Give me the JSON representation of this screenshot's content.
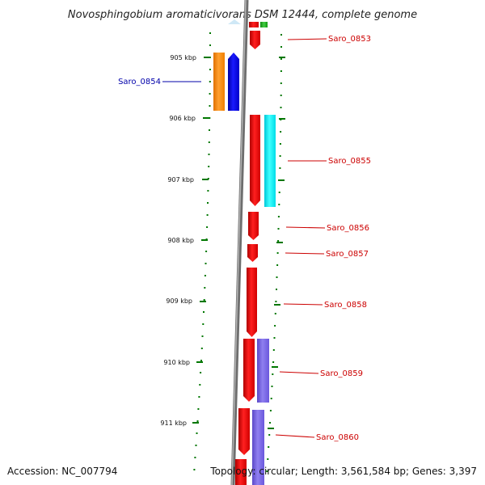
{
  "title": "Novosphingobium aromaticivorans DSM 12444, complete genome",
  "footer": {
    "accession": "Accession: NC_007794",
    "topology": "Topology: circular; Length: 3,561,584 bp; Genes: 3,397"
  },
  "ticks": [
    {
      "label": "905 kbp"
    },
    {
      "label": "906 kbp"
    },
    {
      "label": "907 kbp"
    },
    {
      "label": "908 kbp"
    },
    {
      "label": "909 kbp"
    },
    {
      "label": "910 kbp"
    },
    {
      "label": "911 kbp"
    }
  ],
  "gene_labels": [
    {
      "name": "Saro_0853",
      "strand": "forward"
    },
    {
      "name": "Saro_0854",
      "strand": "reverse"
    },
    {
      "name": "Saro_0855",
      "strand": "forward"
    },
    {
      "name": "Saro_0856",
      "strand": "forward"
    },
    {
      "name": "Saro_0857",
      "strand": "forward"
    },
    {
      "name": "Saro_0858",
      "strand": "forward"
    },
    {
      "name": "Saro_0859",
      "strand": "forward"
    },
    {
      "name": "Saro_0860",
      "strand": "forward"
    }
  ],
  "colors": {
    "forward_cds": "#ff0000",
    "reverse_cds": "#0000ff",
    "orange_feature": "#ff8c00",
    "cyan_feature": "#00e5ee",
    "purple_feature": "#7b68ee",
    "green_feature": "#22aa22",
    "backbone": "#808080",
    "forward_label": "#cc0000",
    "reverse_label": "#0000aa",
    "tick": "#007700"
  }
}
